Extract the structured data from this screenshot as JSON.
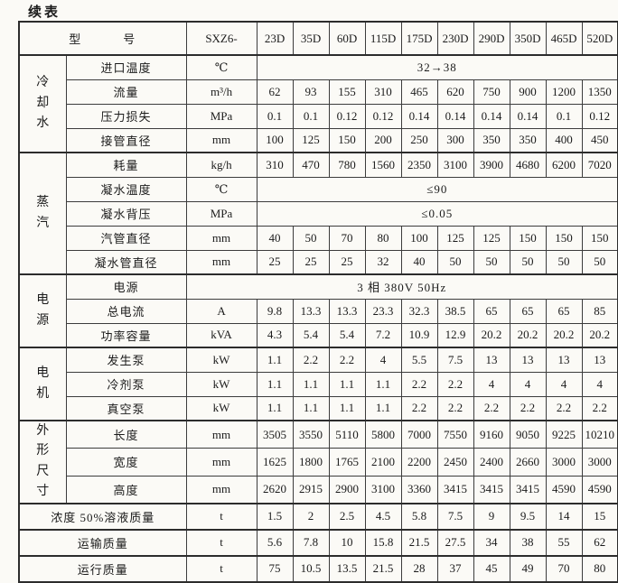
{
  "page_title": "续表",
  "table": {
    "header": {
      "model_label": "型　　　号",
      "series_prefix": "SXZ6-",
      "models": [
        "23D",
        "35D",
        "60D",
        "115D",
        "175D",
        "230D",
        "290D",
        "350D",
        "465D",
        "520D"
      ]
    },
    "sections": [
      {
        "group": "冷却水",
        "rows": [
          {
            "label": "进口温度",
            "unit": "℃",
            "span_value": "32→38"
          },
          {
            "label": "流量",
            "unit": "m³/h",
            "values": [
              "62",
              "93",
              "155",
              "310",
              "465",
              "620",
              "750",
              "900",
              "1200",
              "1350"
            ]
          },
          {
            "label": "压力损失",
            "unit": "MPa",
            "values": [
              "0.1",
              "0.1",
              "0.12",
              "0.12",
              "0.14",
              "0.14",
              "0.14",
              "0.14",
              "0.1",
              "0.12"
            ]
          },
          {
            "label": "接管直径",
            "unit": "mm",
            "values": [
              "100",
              "125",
              "150",
              "200",
              "250",
              "300",
              "350",
              "350",
              "400",
              "450"
            ]
          }
        ]
      },
      {
        "group": "蒸汽",
        "rows": [
          {
            "label": "耗量",
            "unit": "kg/h",
            "values": [
              "310",
              "470",
              "780",
              "1560",
              "2350",
              "3100",
              "3900",
              "4680",
              "6200",
              "7020"
            ]
          },
          {
            "label": "凝水温度",
            "unit": "℃",
            "span_value": "≤90"
          },
          {
            "label": "凝水背压",
            "unit": "MPa",
            "span_value": "≤0.05"
          },
          {
            "label": "汽管直径",
            "unit": "mm",
            "values": [
              "40",
              "50",
              "70",
              "80",
              "100",
              "125",
              "125",
              "150",
              "150",
              "150"
            ]
          },
          {
            "label": "凝水管直径",
            "unit": "mm",
            "values": [
              "25",
              "25",
              "25",
              "32",
              "40",
              "50",
              "50",
              "50",
              "50",
              "50"
            ]
          }
        ]
      },
      {
        "group": "电源",
        "rows": [
          {
            "label": "电源",
            "full_span_value": "3 相 380V 50Hz"
          },
          {
            "label": "总电流",
            "unit": "A",
            "values": [
              "9.8",
              "13.3",
              "13.3",
              "23.3",
              "32.3",
              "38.5",
              "65",
              "65",
              "65",
              "85"
            ]
          },
          {
            "label": "功率容量",
            "unit": "kVA",
            "values": [
              "4.3",
              "5.4",
              "5.4",
              "7.2",
              "10.9",
              "12.9",
              "20.2",
              "20.2",
              "20.2",
              "20.2"
            ]
          }
        ]
      },
      {
        "group": "电机",
        "rows": [
          {
            "label": "发生泵",
            "unit": "kW",
            "values": [
              "1.1",
              "2.2",
              "2.2",
              "4",
              "5.5",
              "7.5",
              "13",
              "13",
              "13",
              "13"
            ]
          },
          {
            "label": "冷剂泵",
            "unit": "kW",
            "values": [
              "1.1",
              "1.1",
              "1.1",
              "1.1",
              "2.2",
              "2.2",
              "4",
              "4",
              "4",
              "4"
            ]
          },
          {
            "label": "真空泵",
            "unit": "kW",
            "values": [
              "1.1",
              "1.1",
              "1.1",
              "1.1",
              "2.2",
              "2.2",
              "2.2",
              "2.2",
              "2.2",
              "2.2"
            ]
          }
        ]
      },
      {
        "group": "外形尺寸",
        "rows": [
          {
            "label": "长度",
            "unit": "mm",
            "values": [
              "3505",
              "3550",
              "5110",
              "5800",
              "7000",
              "7550",
              "9160",
              "9050",
              "9225",
              "10210"
            ]
          },
          {
            "label": "宽度",
            "unit": "mm",
            "values": [
              "1625",
              "1800",
              "1765",
              "2100",
              "2200",
              "2450",
              "2400",
              "2660",
              "3000",
              "3000"
            ]
          },
          {
            "label": "高度",
            "unit": "mm",
            "values": [
              "2620",
              "2915",
              "2900",
              "3100",
              "3360",
              "3415",
              "3415",
              "3415",
              "4590",
              "4590"
            ]
          }
        ]
      },
      {
        "group": null,
        "rows": [
          {
            "label": "浓度 50%溶液质量",
            "unit": "t",
            "wide_label": true,
            "values": [
              "1.5",
              "2",
              "2.5",
              "4.5",
              "5.8",
              "7.5",
              "9",
              "9.5",
              "14",
              "15"
            ]
          }
        ]
      },
      {
        "group": null,
        "rows": [
          {
            "label": "运输质量",
            "unit": "t",
            "wide_label": true,
            "values": [
              "5.6",
              "7.8",
              "10",
              "15.8",
              "21.5",
              "27.5",
              "34",
              "38",
              "55",
              "62"
            ]
          }
        ]
      },
      {
        "group": null,
        "rows": [
          {
            "label": "运行质量",
            "unit": "t",
            "wide_label": true,
            "values": [
              "75",
              "10.5",
              "13.5",
              "21.5",
              "28",
              "37",
              "45",
              "49",
              "70",
              "80"
            ]
          }
        ]
      }
    ]
  }
}
